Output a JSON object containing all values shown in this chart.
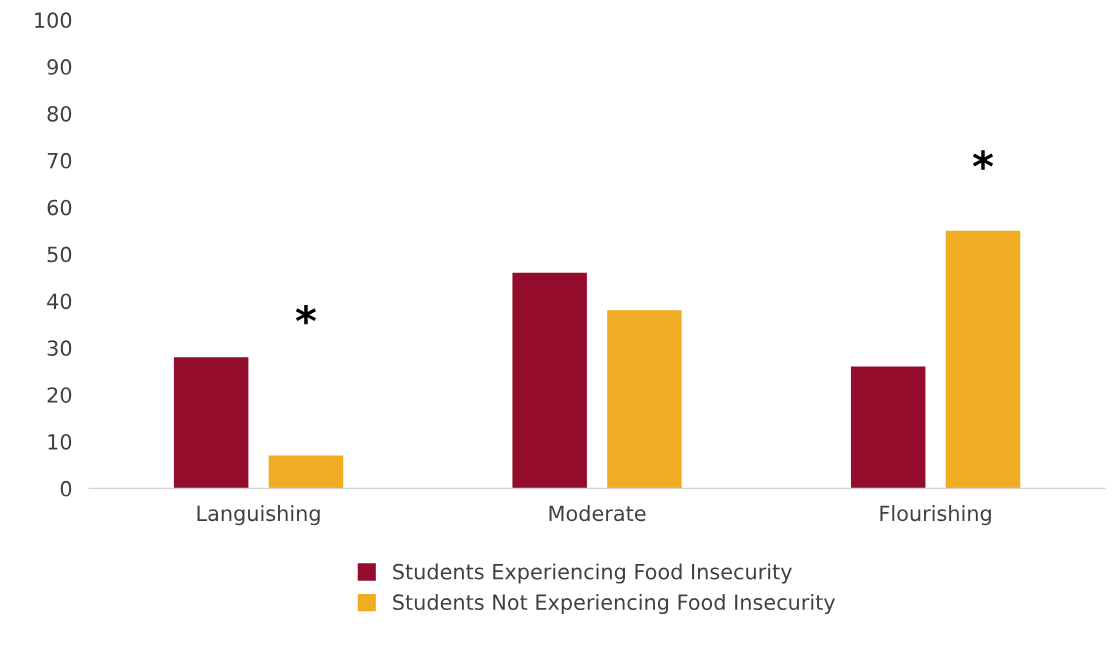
{
  "chart_data": {
    "type": "bar",
    "categories": [
      "Languishing",
      "Moderate",
      "Flourishing"
    ],
    "series": [
      {
        "name": "Students Experiencing Food Insecurity",
        "color": "#940c2c",
        "values": [
          28,
          46,
          26
        ]
      },
      {
        "name": "Students Not Experiencing Food Insecurity",
        "color": "#f0ac22",
        "values": [
          7,
          38,
          55
        ]
      }
    ],
    "ylim": [
      0,
      100
    ],
    "yticks": [
      0,
      10,
      20,
      30,
      40,
      50,
      60,
      70,
      80,
      90,
      100
    ],
    "grid": false,
    "legend": "bottom",
    "annotations": [
      "*",
      "*"
    ]
  }
}
